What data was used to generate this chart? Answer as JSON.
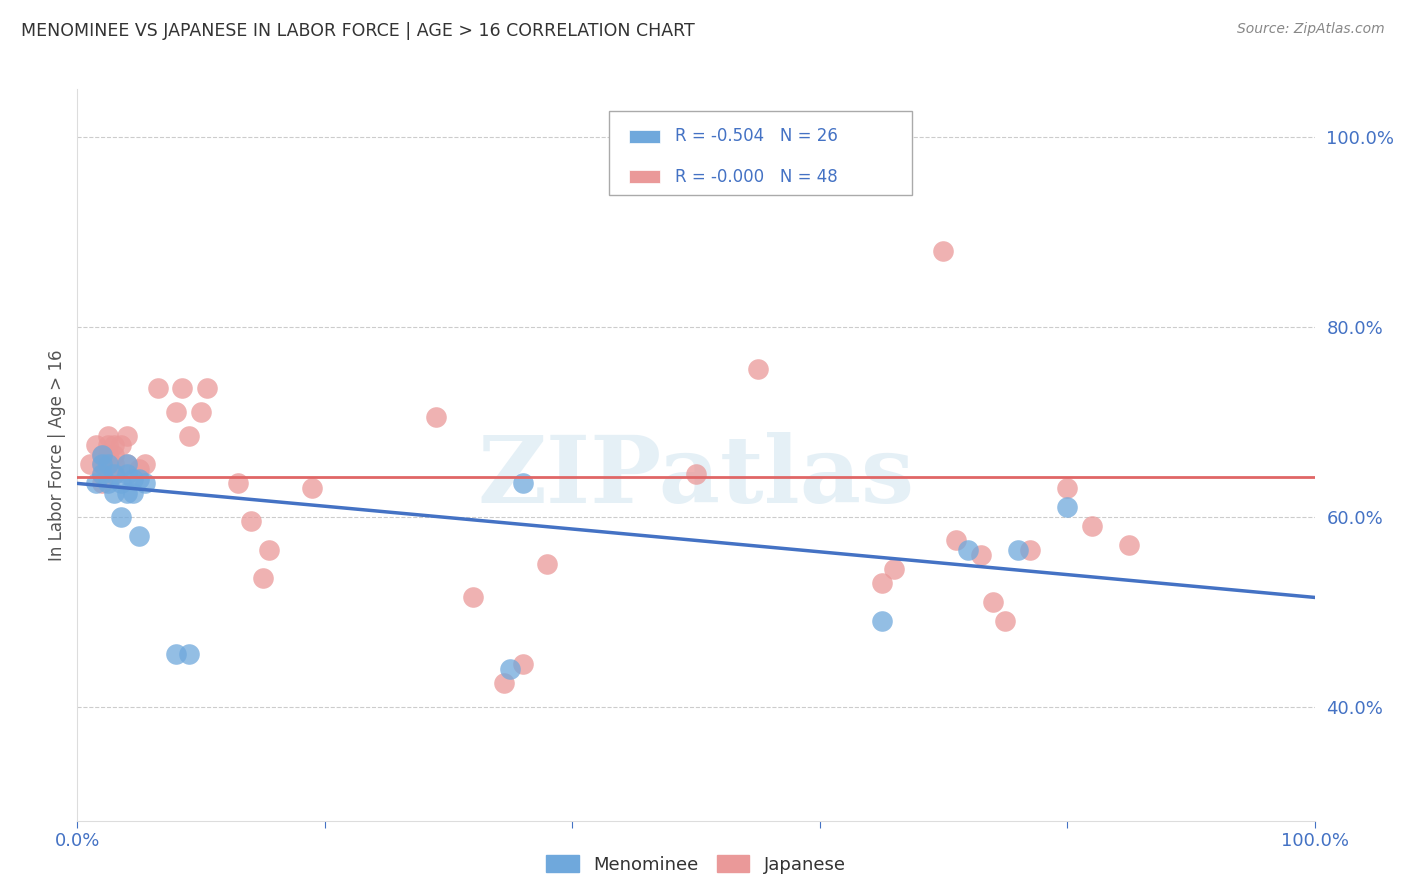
{
  "title": "MENOMINEE VS JAPANESE IN LABOR FORCE | AGE > 16 CORRELATION CHART",
  "source": "Source: ZipAtlas.com",
  "ylabel": "In Labor Force | Age > 16",
  "xlim": [
    0.0,
    1.0
  ],
  "ylim": [
    0.28,
    1.05
  ],
  "xticks": [
    0.0,
    0.2,
    0.4,
    0.6,
    0.8,
    1.0
  ],
  "xticklabels": [
    "0.0%",
    "",
    "",
    "",
    "",
    "100.0%"
  ],
  "yticks_right": [
    0.4,
    0.6,
    0.8,
    1.0
  ],
  "ytick_right_labels": [
    "40.0%",
    "60.0%",
    "80.0%",
    "100.0%"
  ],
  "menominee_x": [
    0.015,
    0.02,
    0.02,
    0.02,
    0.025,
    0.025,
    0.03,
    0.03,
    0.035,
    0.035,
    0.04,
    0.04,
    0.04,
    0.045,
    0.045,
    0.05,
    0.05,
    0.055,
    0.08,
    0.09,
    0.35,
    0.36,
    0.65,
    0.72,
    0.76,
    0.8
  ],
  "menominee_y": [
    0.635,
    0.645,
    0.655,
    0.665,
    0.635,
    0.655,
    0.625,
    0.645,
    0.6,
    0.635,
    0.645,
    0.655,
    0.625,
    0.625,
    0.64,
    0.58,
    0.64,
    0.635,
    0.455,
    0.455,
    0.44,
    0.635,
    0.49,
    0.565,
    0.565,
    0.61
  ],
  "japanese_x": [
    0.01,
    0.015,
    0.02,
    0.02,
    0.02,
    0.02,
    0.025,
    0.025,
    0.025,
    0.025,
    0.03,
    0.03,
    0.03,
    0.03,
    0.035,
    0.04,
    0.04,
    0.05,
    0.055,
    0.065,
    0.08,
    0.085,
    0.09,
    0.1,
    0.105,
    0.13,
    0.14,
    0.15,
    0.155,
    0.19,
    0.29,
    0.32,
    0.345,
    0.36,
    0.38,
    0.5,
    0.55,
    0.65,
    0.66,
    0.7,
    0.71,
    0.73,
    0.74,
    0.75,
    0.77,
    0.8,
    0.82,
    0.85
  ],
  "japanese_y": [
    0.655,
    0.675,
    0.635,
    0.645,
    0.655,
    0.665,
    0.655,
    0.665,
    0.675,
    0.685,
    0.645,
    0.655,
    0.665,
    0.675,
    0.675,
    0.655,
    0.685,
    0.65,
    0.655,
    0.735,
    0.71,
    0.735,
    0.685,
    0.71,
    0.735,
    0.635,
    0.595,
    0.535,
    0.565,
    0.63,
    0.705,
    0.515,
    0.425,
    0.445,
    0.55,
    0.645,
    0.755,
    0.53,
    0.545,
    0.88,
    0.575,
    0.56,
    0.51,
    0.49,
    0.565,
    0.63,
    0.59,
    0.57
  ],
  "menominee_color": "#6fa8dc",
  "japanese_color": "#ea9999",
  "menominee_line_color": "#4472c4",
  "japanese_line_color": "#e06666",
  "menominee_R": "-0.504",
  "menominee_N": "26",
  "japanese_R": "-0.000",
  "japanese_N": "48",
  "menominee_trend_x0": 0.0,
  "menominee_trend_x1": 1.0,
  "menominee_trend_y0": 0.635,
  "menominee_trend_y1": 0.515,
  "japanese_trend_y": 0.642,
  "watermark_text": "ZIPatlas",
  "background_color": "#ffffff",
  "grid_color": "#cccccc",
  "title_color": "#333333",
  "axis_color": "#4472c4"
}
